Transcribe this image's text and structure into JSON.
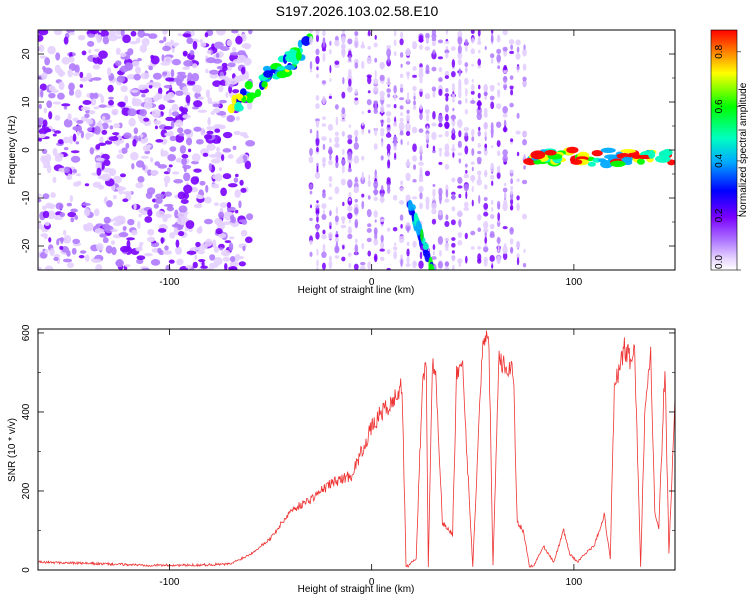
{
  "title": "S197.2026.103.02.58.E10",
  "chart_data": [
    {
      "type": "heatmap",
      "xlabel": "Height of straight line (km)",
      "ylabel": "Frequency (Hz)",
      "xlim": [
        -165,
        150
      ],
      "ylim": [
        -25,
        25
      ],
      "x_ticks": [
        -100,
        0,
        100
      ],
      "y_ticks": [
        -20,
        -10,
        0,
        10,
        20
      ],
      "colorbar": {
        "label": "Normalized spectral amplitude",
        "range": [
          0.0,
          0.88
        ],
        "ticks": [
          0.0,
          0.2,
          0.4,
          0.6,
          0.8
        ],
        "colormap": [
          "#ffffff",
          "#e6d2ff",
          "#b07aff",
          "#7a00ff",
          "#0000ff",
          "#00aaff",
          "#00ffc0",
          "#00ff00",
          "#ffff00",
          "#ff0000"
        ]
      },
      "features": [
        {
          "label": "scattered noise",
          "x_range": [
            -165,
            -60
          ],
          "freq_range": [
            -25,
            25
          ],
          "amplitude": 0.08
        },
        {
          "label": "rising chirp",
          "x_range": [
            -70,
            -30
          ],
          "freq_range": [
            9,
            22
          ],
          "amplitude": 0.75
        },
        {
          "label": "periodic bands",
          "x_range": [
            -30,
            76
          ],
          "freq_range": [
            -25,
            25
          ],
          "amplitude": 0.05
        },
        {
          "label": "descending streak",
          "x_range": [
            18,
            30
          ],
          "freq_range": [
            -25,
            -10
          ],
          "amplitude": 0.55
        },
        {
          "label": "near-zero tone",
          "x_range": [
            78,
            150
          ],
          "freq_range": [
            -3,
            0
          ],
          "amplitude": 0.85
        }
      ]
    },
    {
      "type": "line",
      "xlabel": "Height of straight line (km)",
      "ylabel": "SNR (10 * v/v)",
      "xlim": [
        -165,
        150
      ],
      "ylim": [
        0,
        610
      ],
      "x_ticks": [
        -100,
        0,
        100
      ],
      "y_ticks": [
        0,
        200,
        400,
        600
      ],
      "line_color": "#ee3333",
      "series": [
        {
          "x": [
            -165,
            -150,
            -130,
            -110,
            -90,
            -70,
            -60,
            -50,
            -40,
            -30,
            -20,
            -10,
            0,
            5,
            10,
            15,
            17,
            18,
            22,
            25,
            27,
            28,
            30,
            32,
            35,
            40,
            42,
            45,
            50,
            55,
            58,
            60,
            63,
            65,
            70,
            72,
            75,
            78,
            80,
            85,
            90,
            95,
            98,
            100,
            102,
            105,
            110,
            115,
            118,
            120,
            125,
            128,
            130,
            133,
            135,
            138,
            140,
            142,
            145,
            147,
            150
          ],
          "y": [
            20,
            18,
            15,
            12,
            12,
            15,
            40,
            80,
            150,
            180,
            220,
            240,
            360,
            400,
            420,
            470,
            10,
            10,
            30,
            460,
            520,
            10,
            520,
            470,
            120,
            90,
            500,
            500,
            10,
            600,
            570,
            10,
            560,
            520,
            510,
            120,
            100,
            10,
            10,
            60,
            20,
            100,
            40,
            30,
            20,
            40,
            60,
            140,
            30,
            460,
            560,
            530,
            560,
            10,
            380,
            540,
            150,
            100,
            520,
            40,
            440
          ]
        }
      ]
    }
  ]
}
